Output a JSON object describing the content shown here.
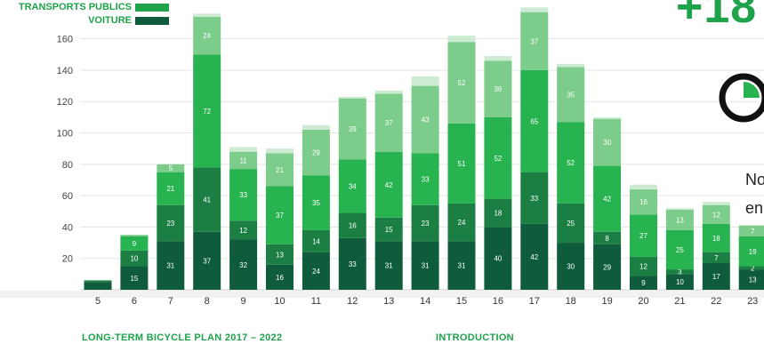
{
  "legend": {
    "transports_label": "TRANSPORTS PUBLICS",
    "voiture_label": "VOITURE"
  },
  "side_panel": {
    "big_number": "+18",
    "text_line1": "No",
    "text_line2": "en"
  },
  "footer": {
    "left": "LONG-TERM BICYCLE PLAN 2017 – 2022",
    "right": "INTRODUCTION"
  },
  "colors": {
    "voiture": "#0e5c3c",
    "transports_publics": "#1ea34a",
    "bright_green": "#27b34f",
    "light_green": "#7ccc8b",
    "top_cap": "#cdebd3",
    "axis": "#cccccc",
    "gridline": "#e5e5e5"
  },
  "chart_data": {
    "type": "bar",
    "stacked": true,
    "categories": [
      "5",
      "6",
      "7",
      "8",
      "9",
      "10",
      "11",
      "12",
      "13",
      "14",
      "15",
      "16",
      "17",
      "18",
      "19",
      "20",
      "21",
      "22",
      "23"
    ],
    "ylim": [
      0,
      170
    ],
    "yticks": [
      20,
      40,
      60,
      80,
      100,
      120,
      140,
      160
    ],
    "grid": true,
    "legend_position": "top-left",
    "series": [
      {
        "name": "VOITURE",
        "color": "#0e5c3c",
        "values": [
          5,
          15,
          31,
          37,
          32,
          16,
          24,
          33,
          31,
          31,
          31,
          40,
          42,
          30,
          29,
          9,
          10,
          17,
          13
        ],
        "labels": [
          null,
          "15",
          "31",
          "37",
          "32",
          "16",
          "24",
          "33",
          "31",
          "31",
          "31",
          "40",
          "42",
          "30",
          "29",
          "9",
          "10",
          "17",
          "13"
        ]
      },
      {
        "color": "#1b7e42",
        "values": [
          1,
          10,
          23,
          41,
          12,
          13,
          14,
          16,
          15,
          23,
          24,
          18,
          33,
          25,
          8,
          12,
          3,
          7,
          2
        ],
        "labels": [
          null,
          "10",
          "23",
          "41",
          "12",
          "13",
          "14",
          "16",
          "15",
          "23",
          "24",
          "18",
          "33",
          "25",
          "8",
          "12",
          "3",
          "7",
          "2"
        ]
      },
      {
        "name": "TRANSPORTS PUBLICS",
        "color": "#27b34f",
        "values": [
          0,
          9,
          21,
          72,
          33,
          37,
          35,
          34,
          42,
          33,
          51,
          52,
          65,
          52,
          42,
          27,
          25,
          18,
          19
        ],
        "labels": [
          null,
          "9",
          "21",
          "72",
          "33",
          "37",
          "35",
          "34",
          "42",
          "33",
          "51",
          "52",
          "65",
          "52",
          "42",
          "27",
          "25",
          "18",
          "19"
        ]
      },
      {
        "color": "#7ccc8b",
        "values": [
          0,
          1,
          5,
          24,
          11,
          21,
          29,
          39,
          37,
          43,
          52,
          36,
          37,
          35,
          30,
          16,
          13,
          12,
          7
        ],
        "labels": [
          null,
          null,
          "5",
          "24",
          "11",
          "21",
          "29",
          "39",
          "37",
          "43",
          "52",
          "36",
          "37",
          "35",
          "30",
          "16",
          "13",
          "12",
          "7"
        ]
      },
      {
        "color": "#cdebd3",
        "values": [
          0,
          0,
          0,
          2,
          3,
          3,
          3,
          1,
          2,
          6,
          4,
          3,
          3,
          2,
          1,
          3,
          1,
          2,
          0
        ],
        "labels": [
          null,
          null,
          null,
          null,
          null,
          null,
          null,
          null,
          null,
          null,
          null,
          null,
          null,
          null,
          null,
          null,
          null,
          null,
          null
        ]
      }
    ]
  }
}
